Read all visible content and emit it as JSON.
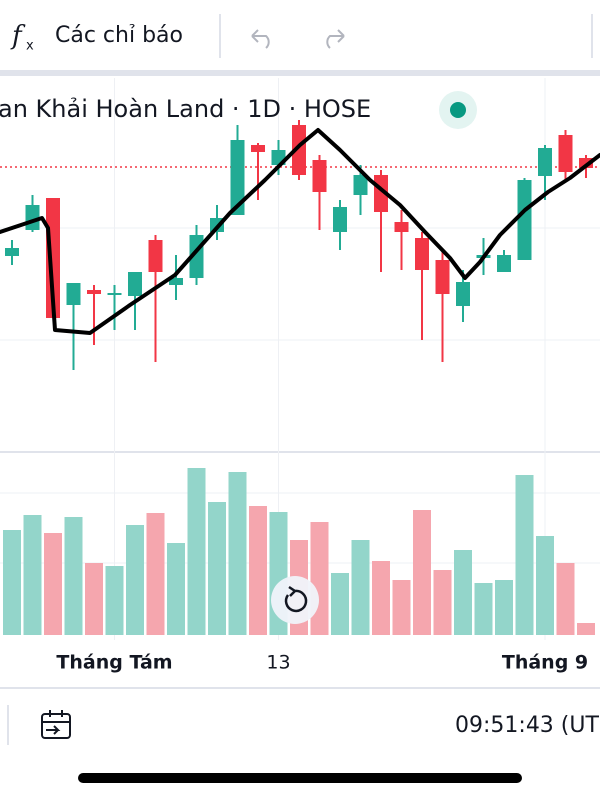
{
  "toolbar": {
    "indicators": "Các chỉ báo"
  },
  "chart_data": {
    "type": "candlestick",
    "title": "an Khải Hoàn Land · 1D · HOSE",
    "categories": [
      null,
      null,
      null,
      null,
      null,
      "Tháng Tám",
      null,
      null,
      null,
      null,
      null,
      null,
      null,
      "13",
      null,
      null,
      null,
      null,
      null,
      null,
      null,
      null,
      null,
      null,
      null,
      null,
      "Tháng 9",
      null,
      null
    ],
    "open": [
      194,
      220,
      252,
      145,
      160,
      155,
      154,
      210,
      165,
      172,
      218,
      235,
      305,
      285,
      325,
      290,
      218,
      255,
      275,
      228,
      212,
      190,
      144,
      192,
      178,
      190,
      274,
      315,
      292
    ],
    "high": [
      210,
      255,
      252,
      167,
      165,
      165,
      178,
      215,
      195,
      225,
      245,
      325,
      307,
      310,
      330,
      295,
      250,
      285,
      280,
      240,
      218,
      200,
      180,
      212,
      200,
      272,
      305,
      320,
      295
    ],
    "low": [
      185,
      218,
      132,
      80,
      105,
      120,
      120,
      88,
      150,
      165,
      210,
      235,
      250,
      275,
      270,
      220,
      200,
      235,
      178,
      180,
      110,
      88,
      128,
      175,
      178,
      190,
      250,
      270,
      272
    ],
    "close": [
      202,
      245,
      132,
      167,
      156,
      157,
      178,
      178,
      172,
      215,
      232,
      310,
      298,
      300,
      275,
      258,
      243,
      275,
      238,
      218,
      180,
      156,
      168,
      195,
      195,
      270,
      302,
      278,
      282
    ],
    "ylim": [
      0,
      370
    ],
    "up_color": "#22ab94",
    "down_color": "#f23645",
    "price_line": 283,
    "price_line_color": "#f23645",
    "grid": true,
    "volume": {
      "values": [
        105,
        120,
        102,
        118,
        72,
        69,
        110,
        122,
        92,
        167,
        133,
        163,
        129,
        123,
        95,
        113,
        62,
        95,
        74,
        55,
        125,
        65,
        85,
        52,
        55,
        160,
        99,
        72,
        12
      ],
      "ylim": [
        0,
        180
      ],
      "up_color": "#93d5ca",
      "down_color": "#f5a6ae"
    }
  },
  "footer": {
    "time": "09:51:43 (UT"
  }
}
